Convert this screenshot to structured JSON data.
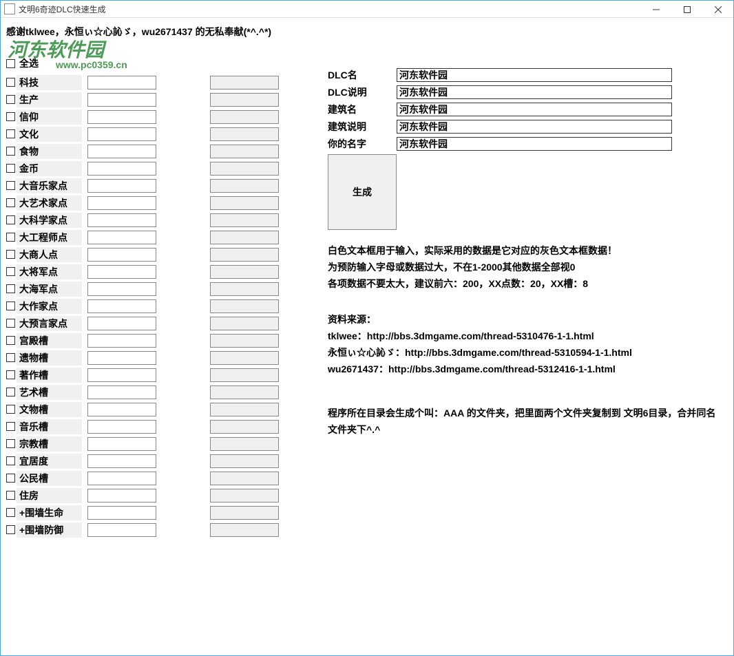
{
  "window": {
    "title": "文明6奇迹DLC快速生成"
  },
  "thanks_line": "感谢tklwee，永恒ぃ☆心訫ゞ，wu2671437  的无私奉献(*^.^*)",
  "select_all_label": "全选",
  "watermark": {
    "main": "河东软件园",
    "url": "www.pc0359.cn"
  },
  "attributes": [
    {
      "label": "科技"
    },
    {
      "label": "生产"
    },
    {
      "label": "信仰"
    },
    {
      "label": "文化"
    },
    {
      "label": "食物"
    },
    {
      "label": "金币"
    },
    {
      "label": "大音乐家点"
    },
    {
      "label": "大艺术家点"
    },
    {
      "label": "大科学家点"
    },
    {
      "label": "大工程师点"
    },
    {
      "label": "大商人点"
    },
    {
      "label": "大将军点"
    },
    {
      "label": "大海军点"
    },
    {
      "label": "大作家点"
    },
    {
      "label": "大预言家点"
    },
    {
      "label": "宫殿槽"
    },
    {
      "label": "遗物槽"
    },
    {
      "label": "著作槽"
    },
    {
      "label": "艺术槽"
    },
    {
      "label": "文物槽"
    },
    {
      "label": "音乐槽"
    },
    {
      "label": "宗教槽"
    },
    {
      "label": "宜居度"
    },
    {
      "label": "公民槽"
    },
    {
      "label": "住房"
    },
    {
      "label": "+围墙生命"
    },
    {
      "label": "+围墙防御"
    }
  ],
  "meta": [
    {
      "label": "DLC名",
      "value": "河东软件园"
    },
    {
      "label": "DLC说明",
      "value": "河东软件园"
    },
    {
      "label": "建筑名",
      "value": "河东软件园"
    },
    {
      "label": "建筑说明",
      "value": "河东软件园"
    },
    {
      "label": "你的名字",
      "value": "河东软件园"
    }
  ],
  "generate_label": "生成",
  "info": {
    "line1": "白色文本框用于输入，实际采用的数据是它对应的灰色文本框数据！",
    "line2": "为预防输入字母或数据过大，不在1-2000其他数据全部视0",
    "line3": "各项数据不要太大，建议前六：200，XX点数：20，XX槽：8"
  },
  "sources": {
    "title": "资料来源：",
    "line1": "tklwee：http://bbs.3dmgame.com/thread-5310476-1-1.html",
    "line2": "永恒ぃ☆心訫ゞ：http://bbs.3dmgame.com/thread-5310594-1-1.html",
    "line3": "wu2671437：http://bbs.3dmgame.com/thread-5312416-1-1.html"
  },
  "final_note": "程序所在目录会生成个叫：AAA 的文件夹，把里面两个文件夹复制到 文明6目录，合并同名文件夹下^.^"
}
